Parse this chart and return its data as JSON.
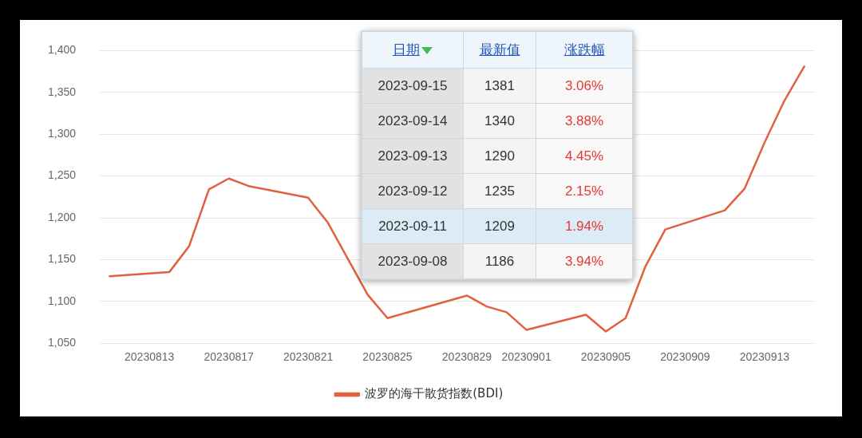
{
  "chart_data": {
    "type": "line",
    "x": [
      "2023-08-11",
      "2023-08-14",
      "2023-08-15",
      "2023-08-16",
      "2023-08-17",
      "2023-08-18",
      "2023-08-21",
      "2023-08-22",
      "2023-08-24",
      "2023-08-25",
      "2023-08-29",
      "2023-08-30",
      "2023-08-31",
      "2023-09-01",
      "2023-09-04",
      "2023-09-05",
      "2023-09-06",
      "2023-09-07",
      "2023-09-08",
      "2023-09-11",
      "2023-09-12",
      "2023-09-13",
      "2023-09-14",
      "2023-09-15"
    ],
    "series": [
      {
        "name": "波罗的海干散货指数(BDI)",
        "color": "#e0613e",
        "values": [
          1130,
          1135,
          1166,
          1234,
          1247,
          1238,
          1224,
          1194,
          1108,
          1080,
          1107,
          1094,
          1087,
          1066,
          1084,
          1064,
          1080,
          1142,
          1186,
          1209,
          1235,
          1290,
          1340,
          1381
        ]
      }
    ],
    "xlim": [
      "2023-08-10T12:00",
      "2023-09-15T12:00"
    ],
    "xticks": [
      {
        "value": "2023-08-13",
        "label": "20230813"
      },
      {
        "value": "2023-08-17",
        "label": "20230817"
      },
      {
        "value": "2023-08-21",
        "label": "20230821"
      },
      {
        "value": "2023-08-25",
        "label": "20230825"
      },
      {
        "value": "2023-08-29",
        "label": "20230829"
      },
      {
        "value": "2023-09-01",
        "label": "20230901"
      },
      {
        "value": "2023-09-05",
        "label": "20230905"
      },
      {
        "value": "2023-09-09",
        "label": "20230909"
      },
      {
        "value": "2023-09-13",
        "label": "20230913"
      }
    ],
    "ylim": [
      1050,
      1400
    ],
    "yticks": [
      {
        "value": 1050,
        "label": "1,050"
      },
      {
        "value": 1100,
        "label": "1,100"
      },
      {
        "value": 1150,
        "label": "1,150"
      },
      {
        "value": 1200,
        "label": "1,200"
      },
      {
        "value": 1250,
        "label": "1,250"
      },
      {
        "value": 1300,
        "label": "1,300"
      },
      {
        "value": 1350,
        "label": "1,350"
      },
      {
        "value": 1400,
        "label": "1,400"
      }
    ],
    "grid": "y",
    "legend": "bottom",
    "marker": "none",
    "line_style": "solid",
    "annotations": [
      "日期",
      "最新值",
      "涨跌幅",
      "2023-09-15",
      "1381",
      "3.06%",
      "2023-09-14",
      "1340",
      "3.88%",
      "2023-09-13",
      "1290",
      "4.45%",
      "2023-09-12",
      "1235",
      "2.15%",
      "2023-09-11",
      "1209",
      "1.94%",
      "2023-09-08",
      "1186",
      "3.94%"
    ]
  }
}
